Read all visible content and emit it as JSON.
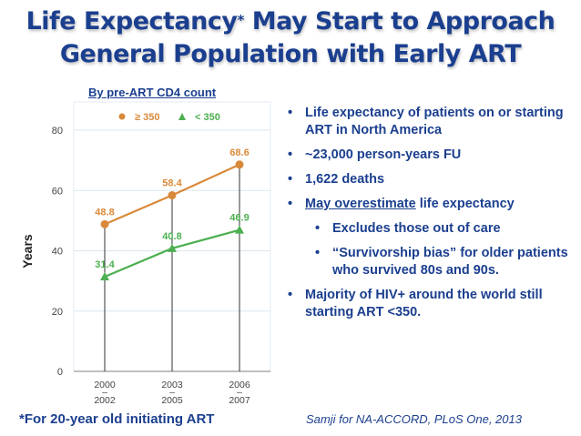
{
  "slide": {
    "title_part1": "Life Expectancy",
    "title_asterisk": "*",
    "title_part2": " May Start to Approach",
    "title_line2": "General Population with Early ART",
    "chart_subtitle": "By pre-ART CD4 count",
    "bullets": [
      {
        "level": 1,
        "text": "Life expectancy of patients on or starting ART in North America"
      },
      {
        "level": 1,
        "text": "~23,000 person-years FU"
      },
      {
        "level": 1,
        "text": "1,622 deaths"
      },
      {
        "level": 1,
        "underlined": "May overestimate",
        "text": " life expectancy"
      },
      {
        "level": 2,
        "text": "Excludes those out of care"
      },
      {
        "level": 2,
        "text": "“Survivorship bias” for older patients who survived 80s and 90s."
      },
      {
        "level": 1,
        "text": "Majority of HIV+ around the world still starting ART <350."
      }
    ],
    "footnote": "*For 20-year old initiating ART",
    "citation": "Samji for NA-ACCORD, PLoS One, 2013"
  },
  "chart_data": {
    "type": "line",
    "title": "By pre-ART CD4 count",
    "xlabel": "",
    "ylabel": "Years",
    "categories": [
      "2000 – 2002",
      "2003 – 2005",
      "2006 – 2007"
    ],
    "category_lines": [
      [
        "2000",
        "–",
        "2002"
      ],
      [
        "2003",
        "–",
        "2005"
      ],
      [
        "2006",
        "–",
        "2007"
      ]
    ],
    "ylim": [
      0,
      80
    ],
    "yticks": [
      0,
      20,
      40,
      60,
      80
    ],
    "grid": true,
    "legend_position": "top",
    "series": [
      {
        "name": "≥ 350",
        "marker": "circle",
        "color": "#d9893a",
        "values": [
          48.8,
          58.4,
          68.6
        ],
        "labels": [
          "48.8",
          "58.4",
          "68.6"
        ]
      },
      {
        "name": "< 350",
        "marker": "triangle",
        "color": "#4caf50",
        "values": [
          31.4,
          40.8,
          46.9
        ],
        "labels": [
          "31.4",
          "40.8",
          "46.9"
        ]
      }
    ]
  }
}
